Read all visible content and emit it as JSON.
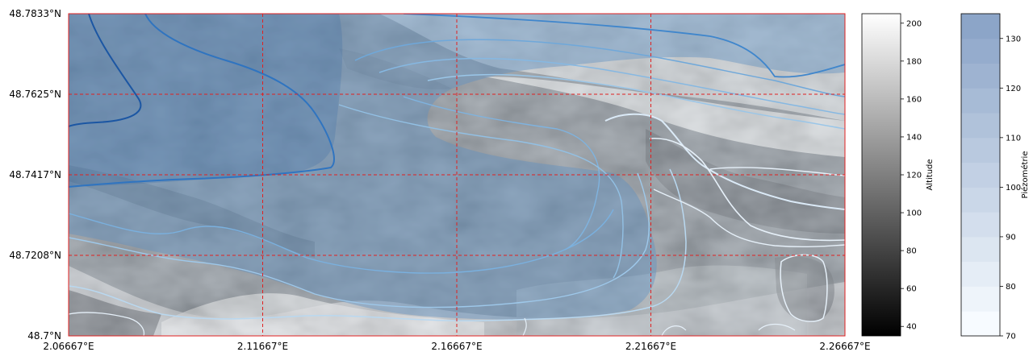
{
  "map": {
    "lat_ticks": [
      "48.7833°N",
      "48.7625°N",
      "48.7417°N",
      "48.7208°N",
      "48.7°N"
    ],
    "lon_ticks": [
      "2.06667°E",
      "2.11667°E",
      "2.16667°E",
      "2.21667°E",
      "2.26667°E"
    ],
    "grid_color": "#e02020",
    "grid_style": "dashed"
  },
  "colorbars": {
    "altitude": {
      "label": "Altitude",
      "ticks": [
        "40",
        "60",
        "80",
        "100",
        "120",
        "140",
        "160",
        "180",
        "200"
      ],
      "range": [
        35,
        205
      ],
      "cmap": "gray"
    },
    "piezometrie": {
      "label": "Piézométrie",
      "ticks": [
        "70",
        "80",
        "90",
        "100",
        "110",
        "120",
        "130"
      ],
      "range": [
        70,
        135
      ],
      "cmap": "Blues"
    }
  }
}
